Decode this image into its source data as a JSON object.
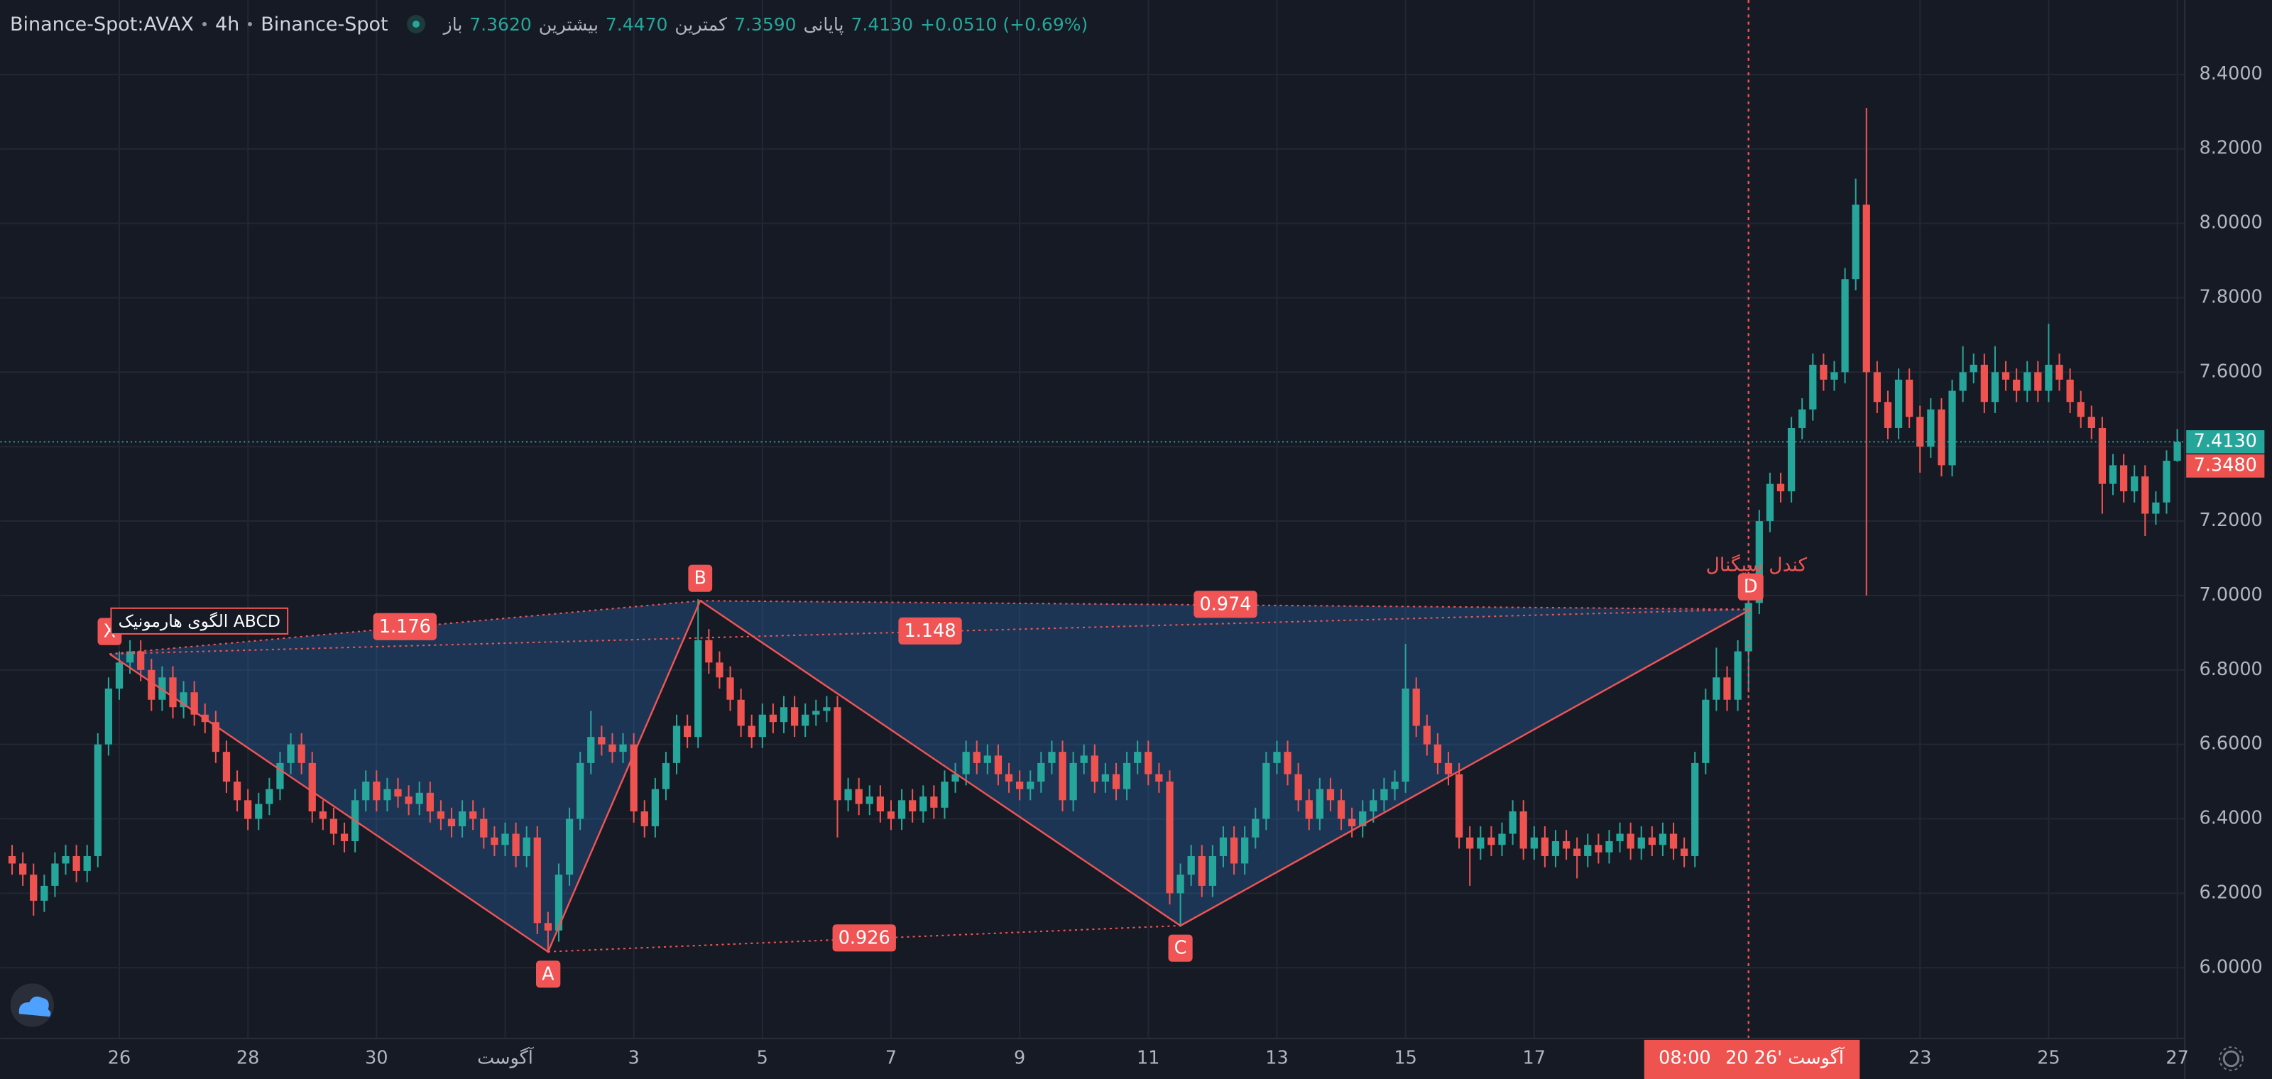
{
  "header": {
    "symbol": "Binance-Spot:AVAX",
    "interval": "4h",
    "exchange": "Binance-Spot",
    "ohlc": [
      {
        "label": "باز",
        "value": "7.3620"
      },
      {
        "label": "بیشترین",
        "value": "7.4470"
      },
      {
        "label": "کمترین",
        "value": "7.3590"
      },
      {
        "label": "پایانی",
        "value": "7.4130"
      }
    ],
    "change": "+0.0510 (+0.69%)"
  },
  "chart_data": {
    "type": "candlestick",
    "up_color": "#26a69a",
    "down_color": "#ef5350",
    "grid": true,
    "xlim": [
      -1.1,
      202.7
    ],
    "ylim": [
      5.81,
      8.6
    ],
    "xticks": [
      {
        "value": 10,
        "label": "26"
      },
      {
        "value": 22,
        "label": "28"
      },
      {
        "value": 34,
        "label": "30"
      },
      {
        "value": 46,
        "label": "آگوست"
      },
      {
        "value": 58,
        "label": "3"
      },
      {
        "value": 70,
        "label": "5"
      },
      {
        "value": 82,
        "label": "7"
      },
      {
        "value": 94,
        "label": "9"
      },
      {
        "value": 106,
        "label": "11"
      },
      {
        "value": 118,
        "label": "13"
      },
      {
        "value": 130,
        "label": "15"
      },
      {
        "value": 142,
        "label": "17"
      },
      {
        "value": 178,
        "label": "23"
      },
      {
        "value": 190,
        "label": "25"
      },
      {
        "value": 202,
        "label": "27"
      }
    ],
    "yticks": [
      {
        "value": 6.0,
        "label": "6.0000"
      },
      {
        "value": 6.2,
        "label": "6.2000"
      },
      {
        "value": 6.4,
        "label": "6.4000"
      },
      {
        "value": 6.6,
        "label": "6.6000"
      },
      {
        "value": 6.8,
        "label": "6.8000"
      },
      {
        "value": 7.0,
        "label": "7.0000"
      },
      {
        "value": 7.2,
        "label": "7.2000"
      },
      {
        "value": 7.4,
        "label": "7.4000"
      },
      {
        "value": 7.6,
        "label": "7.6000"
      },
      {
        "value": 7.8,
        "label": "7.8000"
      },
      {
        "value": 8.0,
        "label": "8.0000"
      },
      {
        "value": 8.2,
        "label": "8.2000"
      },
      {
        "value": 8.4,
        "label": "8.4000"
      }
    ],
    "ohlc": [
      [
        6.3,
        6.33,
        6.25,
        6.28
      ],
      [
        6.28,
        6.31,
        6.22,
        6.25
      ],
      [
        6.25,
        6.28,
        6.14,
        6.18
      ],
      [
        6.18,
        6.25,
        6.15,
        6.22
      ],
      [
        6.22,
        6.31,
        6.19,
        6.28
      ],
      [
        6.28,
        6.33,
        6.25,
        6.3
      ],
      [
        6.3,
        6.33,
        6.23,
        6.26
      ],
      [
        6.26,
        6.33,
        6.23,
        6.3
      ],
      [
        6.3,
        6.63,
        6.27,
        6.6
      ],
      [
        6.6,
        6.78,
        6.57,
        6.75
      ],
      [
        6.75,
        6.85,
        6.72,
        6.82
      ],
      [
        6.82,
        6.88,
        6.79,
        6.85
      ],
      [
        6.85,
        6.88,
        6.77,
        6.8
      ],
      [
        6.8,
        6.83,
        6.69,
        6.72
      ],
      [
        6.72,
        6.81,
        6.69,
        6.78
      ],
      [
        6.78,
        6.81,
        6.67,
        6.7
      ],
      [
        6.7,
        6.77,
        6.67,
        6.74
      ],
      [
        6.74,
        6.77,
        6.65,
        6.68
      ],
      [
        6.68,
        6.71,
        6.63,
        6.66
      ],
      [
        6.66,
        6.69,
        6.55,
        6.58
      ],
      [
        6.58,
        6.61,
        6.47,
        6.5
      ],
      [
        6.5,
        6.53,
        6.42,
        6.45
      ],
      [
        6.45,
        6.48,
        6.37,
        6.4
      ],
      [
        6.4,
        6.47,
        6.37,
        6.44
      ],
      [
        6.44,
        6.51,
        6.41,
        6.48
      ],
      [
        6.48,
        6.58,
        6.45,
        6.55
      ],
      [
        6.55,
        6.63,
        6.52,
        6.6
      ],
      [
        6.6,
        6.63,
        6.52,
        6.55
      ],
      [
        6.55,
        6.58,
        6.39,
        6.42
      ],
      [
        6.42,
        6.45,
        6.37,
        6.4
      ],
      [
        6.4,
        6.43,
        6.33,
        6.36
      ],
      [
        6.36,
        6.39,
        6.31,
        6.34
      ],
      [
        6.34,
        6.48,
        6.31,
        6.45
      ],
      [
        6.45,
        6.53,
        6.42,
        6.5
      ],
      [
        6.5,
        6.53,
        6.42,
        6.45
      ],
      [
        6.45,
        6.51,
        6.42,
        6.48
      ],
      [
        6.48,
        6.51,
        6.43,
        6.46
      ],
      [
        6.46,
        6.49,
        6.41,
        6.44
      ],
      [
        6.44,
        6.5,
        6.41,
        6.47
      ],
      [
        6.47,
        6.5,
        6.39,
        6.42
      ],
      [
        6.42,
        6.45,
        6.37,
        6.4
      ],
      [
        6.4,
        6.43,
        6.35,
        6.38
      ],
      [
        6.38,
        6.45,
        6.35,
        6.42
      ],
      [
        6.42,
        6.45,
        6.37,
        6.4
      ],
      [
        6.4,
        6.43,
        6.32,
        6.35
      ],
      [
        6.35,
        6.38,
        6.3,
        6.33
      ],
      [
        6.33,
        6.39,
        6.3,
        6.36
      ],
      [
        6.36,
        6.39,
        6.27,
        6.3
      ],
      [
        6.3,
        6.38,
        6.27,
        6.35
      ],
      [
        6.35,
        6.38,
        6.09,
        6.12
      ],
      [
        6.12,
        6.15,
        6.04,
        6.1
      ],
      [
        6.1,
        6.28,
        6.07,
        6.25
      ],
      [
        6.25,
        6.43,
        6.22,
        6.4
      ],
      [
        6.4,
        6.58,
        6.37,
        6.55
      ],
      [
        6.55,
        6.69,
        6.52,
        6.62
      ],
      [
        6.62,
        6.65,
        6.57,
        6.6
      ],
      [
        6.6,
        6.63,
        6.55,
        6.58
      ],
      [
        6.58,
        6.63,
        6.55,
        6.6
      ],
      [
        6.6,
        6.63,
        6.39,
        6.42
      ],
      [
        6.42,
        6.45,
        6.35,
        6.38
      ],
      [
        6.38,
        6.51,
        6.35,
        6.48
      ],
      [
        6.48,
        6.58,
        6.45,
        6.55
      ],
      [
        6.55,
        6.68,
        6.52,
        6.65
      ],
      [
        6.65,
        6.68,
        6.59,
        6.62
      ],
      [
        6.62,
        6.99,
        6.59,
        6.88
      ],
      [
        6.88,
        6.91,
        6.79,
        6.82
      ],
      [
        6.82,
        6.85,
        6.75,
        6.78
      ],
      [
        6.78,
        6.81,
        6.69,
        6.72
      ],
      [
        6.72,
        6.75,
        6.62,
        6.65
      ],
      [
        6.65,
        6.68,
        6.59,
        6.62
      ],
      [
        6.62,
        6.71,
        6.59,
        6.68
      ],
      [
        6.68,
        6.71,
        6.63,
        6.66
      ],
      [
        6.66,
        6.73,
        6.63,
        6.7
      ],
      [
        6.7,
        6.73,
        6.62,
        6.65
      ],
      [
        6.65,
        6.71,
        6.62,
        6.68
      ],
      [
        6.68,
        6.72,
        6.65,
        6.69
      ],
      [
        6.69,
        6.73,
        6.66,
        6.7
      ],
      [
        6.7,
        6.73,
        6.35,
        6.45
      ],
      [
        6.45,
        6.51,
        6.42,
        6.48
      ],
      [
        6.48,
        6.51,
        6.41,
        6.44
      ],
      [
        6.44,
        6.49,
        6.41,
        6.46
      ],
      [
        6.46,
        6.49,
        6.39,
        6.42
      ],
      [
        6.42,
        6.45,
        6.37,
        6.4
      ],
      [
        6.4,
        6.48,
        6.37,
        6.45
      ],
      [
        6.45,
        6.48,
        6.39,
        6.42
      ],
      [
        6.42,
        6.49,
        6.39,
        6.46
      ],
      [
        6.46,
        6.49,
        6.4,
        6.43
      ],
      [
        6.43,
        6.53,
        6.4,
        6.5
      ],
      [
        6.5,
        6.55,
        6.47,
        6.52
      ],
      [
        6.52,
        6.61,
        6.49,
        6.58
      ],
      [
        6.58,
        6.61,
        6.52,
        6.55
      ],
      [
        6.55,
        6.6,
        6.52,
        6.57
      ],
      [
        6.57,
        6.6,
        6.49,
        6.52
      ],
      [
        6.52,
        6.55,
        6.47,
        6.5
      ],
      [
        6.5,
        6.53,
        6.45,
        6.48
      ],
      [
        6.48,
        6.53,
        6.45,
        6.5
      ],
      [
        6.5,
        6.58,
        6.47,
        6.55
      ],
      [
        6.55,
        6.61,
        6.52,
        6.58
      ],
      [
        6.58,
        6.61,
        6.42,
        6.45
      ],
      [
        6.45,
        6.58,
        6.42,
        6.55
      ],
      [
        6.55,
        6.6,
        6.52,
        6.57
      ],
      [
        6.57,
        6.6,
        6.47,
        6.5
      ],
      [
        6.5,
        6.55,
        6.47,
        6.52
      ],
      [
        6.52,
        6.55,
        6.45,
        6.48
      ],
      [
        6.48,
        6.58,
        6.45,
        6.55
      ],
      [
        6.55,
        6.61,
        6.52,
        6.58
      ],
      [
        6.58,
        6.61,
        6.49,
        6.52
      ],
      [
        6.52,
        6.55,
        6.47,
        6.5
      ],
      [
        6.5,
        6.53,
        6.17,
        6.2
      ],
      [
        6.2,
        6.28,
        6.11,
        6.25
      ],
      [
        6.25,
        6.33,
        6.22,
        6.3
      ],
      [
        6.3,
        6.33,
        6.19,
        6.22
      ],
      [
        6.22,
        6.33,
        6.19,
        6.3
      ],
      [
        6.3,
        6.38,
        6.27,
        6.35
      ],
      [
        6.35,
        6.38,
        6.25,
        6.28
      ],
      [
        6.28,
        6.38,
        6.25,
        6.35
      ],
      [
        6.35,
        6.43,
        6.32,
        6.4
      ],
      [
        6.4,
        6.58,
        6.37,
        6.55
      ],
      [
        6.55,
        6.61,
        6.52,
        6.58
      ],
      [
        6.58,
        6.61,
        6.49,
        6.52
      ],
      [
        6.52,
        6.55,
        6.42,
        6.45
      ],
      [
        6.45,
        6.48,
        6.37,
        6.4
      ],
      [
        6.4,
        6.51,
        6.37,
        6.48
      ],
      [
        6.48,
        6.51,
        6.42,
        6.45
      ],
      [
        6.45,
        6.48,
        6.37,
        6.4
      ],
      [
        6.4,
        6.43,
        6.35,
        6.38
      ],
      [
        6.38,
        6.45,
        6.35,
        6.42
      ],
      [
        6.42,
        6.48,
        6.39,
        6.45
      ],
      [
        6.45,
        6.51,
        6.42,
        6.48
      ],
      [
        6.48,
        6.53,
        6.45,
        6.5
      ],
      [
        6.5,
        6.87,
        6.47,
        6.75
      ],
      [
        6.75,
        6.78,
        6.62,
        6.65
      ],
      [
        6.65,
        6.68,
        6.57,
        6.6
      ],
      [
        6.6,
        6.63,
        6.52,
        6.55
      ],
      [
        6.55,
        6.58,
        6.49,
        6.52
      ],
      [
        6.52,
        6.55,
        6.32,
        6.35
      ],
      [
        6.35,
        6.38,
        6.22,
        6.32
      ],
      [
        6.32,
        6.38,
        6.29,
        6.35
      ],
      [
        6.35,
        6.38,
        6.3,
        6.33
      ],
      [
        6.33,
        6.39,
        6.3,
        6.36
      ],
      [
        6.36,
        6.45,
        6.33,
        6.42
      ],
      [
        6.42,
        6.45,
        6.29,
        6.32
      ],
      [
        6.32,
        6.38,
        6.29,
        6.35
      ],
      [
        6.35,
        6.38,
        6.27,
        6.3
      ],
      [
        6.3,
        6.37,
        6.27,
        6.34
      ],
      [
        6.34,
        6.37,
        6.29,
        6.32
      ],
      [
        6.32,
        6.35,
        6.24,
        6.3
      ],
      [
        6.3,
        6.36,
        6.27,
        6.33
      ],
      [
        6.33,
        6.36,
        6.28,
        6.31
      ],
      [
        6.31,
        6.37,
        6.28,
        6.34
      ],
      [
        6.34,
        6.39,
        6.31,
        6.36
      ],
      [
        6.36,
        6.39,
        6.29,
        6.32
      ],
      [
        6.32,
        6.38,
        6.29,
        6.35
      ],
      [
        6.35,
        6.38,
        6.3,
        6.33
      ],
      [
        6.33,
        6.39,
        6.3,
        6.36
      ],
      [
        6.36,
        6.39,
        6.29,
        6.32
      ],
      [
        6.32,
        6.35,
        6.27,
        6.3
      ],
      [
        6.3,
        6.58,
        6.27,
        6.55
      ],
      [
        6.55,
        6.75,
        6.52,
        6.72
      ],
      [
        6.72,
        6.86,
        6.69,
        6.78
      ],
      [
        6.78,
        6.81,
        6.69,
        6.72
      ],
      [
        6.72,
        6.88,
        6.69,
        6.85
      ],
      [
        6.85,
        7.01,
        6.74,
        6.98
      ],
      [
        6.98,
        7.23,
        6.95,
        7.2
      ],
      [
        7.2,
        7.33,
        7.17,
        7.3
      ],
      [
        7.3,
        7.33,
        7.25,
        7.28
      ],
      [
        7.28,
        7.48,
        7.25,
        7.45
      ],
      [
        7.45,
        7.53,
        7.42,
        7.5
      ],
      [
        7.5,
        7.65,
        7.47,
        7.62
      ],
      [
        7.62,
        7.65,
        7.55,
        7.58
      ],
      [
        7.58,
        7.63,
        7.55,
        7.6
      ],
      [
        7.6,
        7.88,
        7.57,
        7.85
      ],
      [
        7.85,
        8.12,
        7.82,
        8.05
      ],
      [
        8.05,
        8.31,
        7.0,
        7.6
      ],
      [
        7.6,
        7.63,
        7.49,
        7.52
      ],
      [
        7.52,
        7.55,
        7.42,
        7.45
      ],
      [
        7.45,
        7.61,
        7.42,
        7.58
      ],
      [
        7.58,
        7.61,
        7.45,
        7.48
      ],
      [
        7.48,
        7.51,
        7.33,
        7.4
      ],
      [
        7.4,
        7.53,
        7.37,
        7.5
      ],
      [
        7.5,
        7.53,
        7.32,
        7.35
      ],
      [
        7.35,
        7.58,
        7.32,
        7.55
      ],
      [
        7.55,
        7.67,
        7.52,
        7.6
      ],
      [
        7.6,
        7.65,
        7.57,
        7.62
      ],
      [
        7.62,
        7.65,
        7.49,
        7.52
      ],
      [
        7.52,
        7.67,
        7.49,
        7.6
      ],
      [
        7.6,
        7.63,
        7.55,
        7.58
      ],
      [
        7.58,
        7.61,
        7.52,
        7.55
      ],
      [
        7.55,
        7.63,
        7.52,
        7.6
      ],
      [
        7.6,
        7.63,
        7.52,
        7.55
      ],
      [
        7.55,
        7.73,
        7.52,
        7.62
      ],
      [
        7.62,
        7.65,
        7.55,
        7.58
      ],
      [
        7.58,
        7.61,
        7.49,
        7.52
      ],
      [
        7.52,
        7.55,
        7.45,
        7.48
      ],
      [
        7.48,
        7.51,
        7.42,
        7.45
      ],
      [
        7.45,
        7.48,
        7.22,
        7.3
      ],
      [
        7.3,
        7.38,
        7.27,
        7.35
      ],
      [
        7.35,
        7.38,
        7.25,
        7.28
      ],
      [
        7.28,
        7.35,
        7.25,
        7.32
      ],
      [
        7.32,
        7.35,
        7.16,
        7.22
      ],
      [
        7.22,
        7.28,
        7.19,
        7.25
      ],
      [
        7.25,
        7.39,
        7.22,
        7.362
      ],
      [
        7.362,
        7.447,
        7.359,
        7.413
      ]
    ],
    "price_lines": [
      {
        "value": 7.413,
        "label": "7.4130",
        "color": "#26a69a"
      },
      {
        "value": 7.348,
        "label": "7.3480",
        "color": "#ef5350"
      }
    ],
    "crosshair": {
      "x": 162,
      "time": "08:00",
      "date": "20 آگوست '26",
      "color": "#ef5350"
    },
    "pattern": {
      "title": "الگوی هارمونیک ABCD",
      "color": "#f05454",
      "fill": "rgba(41,98,166,0.38)",
      "points": [
        {
          "name": "X",
          "x": 9.1,
          "y": 6.843
        },
        {
          "name": "A",
          "x": 50,
          "y": 6.043
        },
        {
          "name": "B",
          "x": 64.2,
          "y": 6.986
        },
        {
          "name": "C",
          "x": 109,
          "y": 6.113
        },
        {
          "name": "D",
          "x": 162.2,
          "y": 6.963
        }
      ],
      "ratios": [
        {
          "value": 1.176,
          "between": [
            "X",
            "B"
          ]
        },
        {
          "value": 1.148,
          "between": [
            "X",
            "D"
          ]
        },
        {
          "value": 0.974,
          "between": [
            "B",
            "D"
          ]
        },
        {
          "value": 0.926,
          "between": [
            "A",
            "C"
          ]
        }
      ],
      "signal_label": "کندل سیگنال"
    }
  }
}
